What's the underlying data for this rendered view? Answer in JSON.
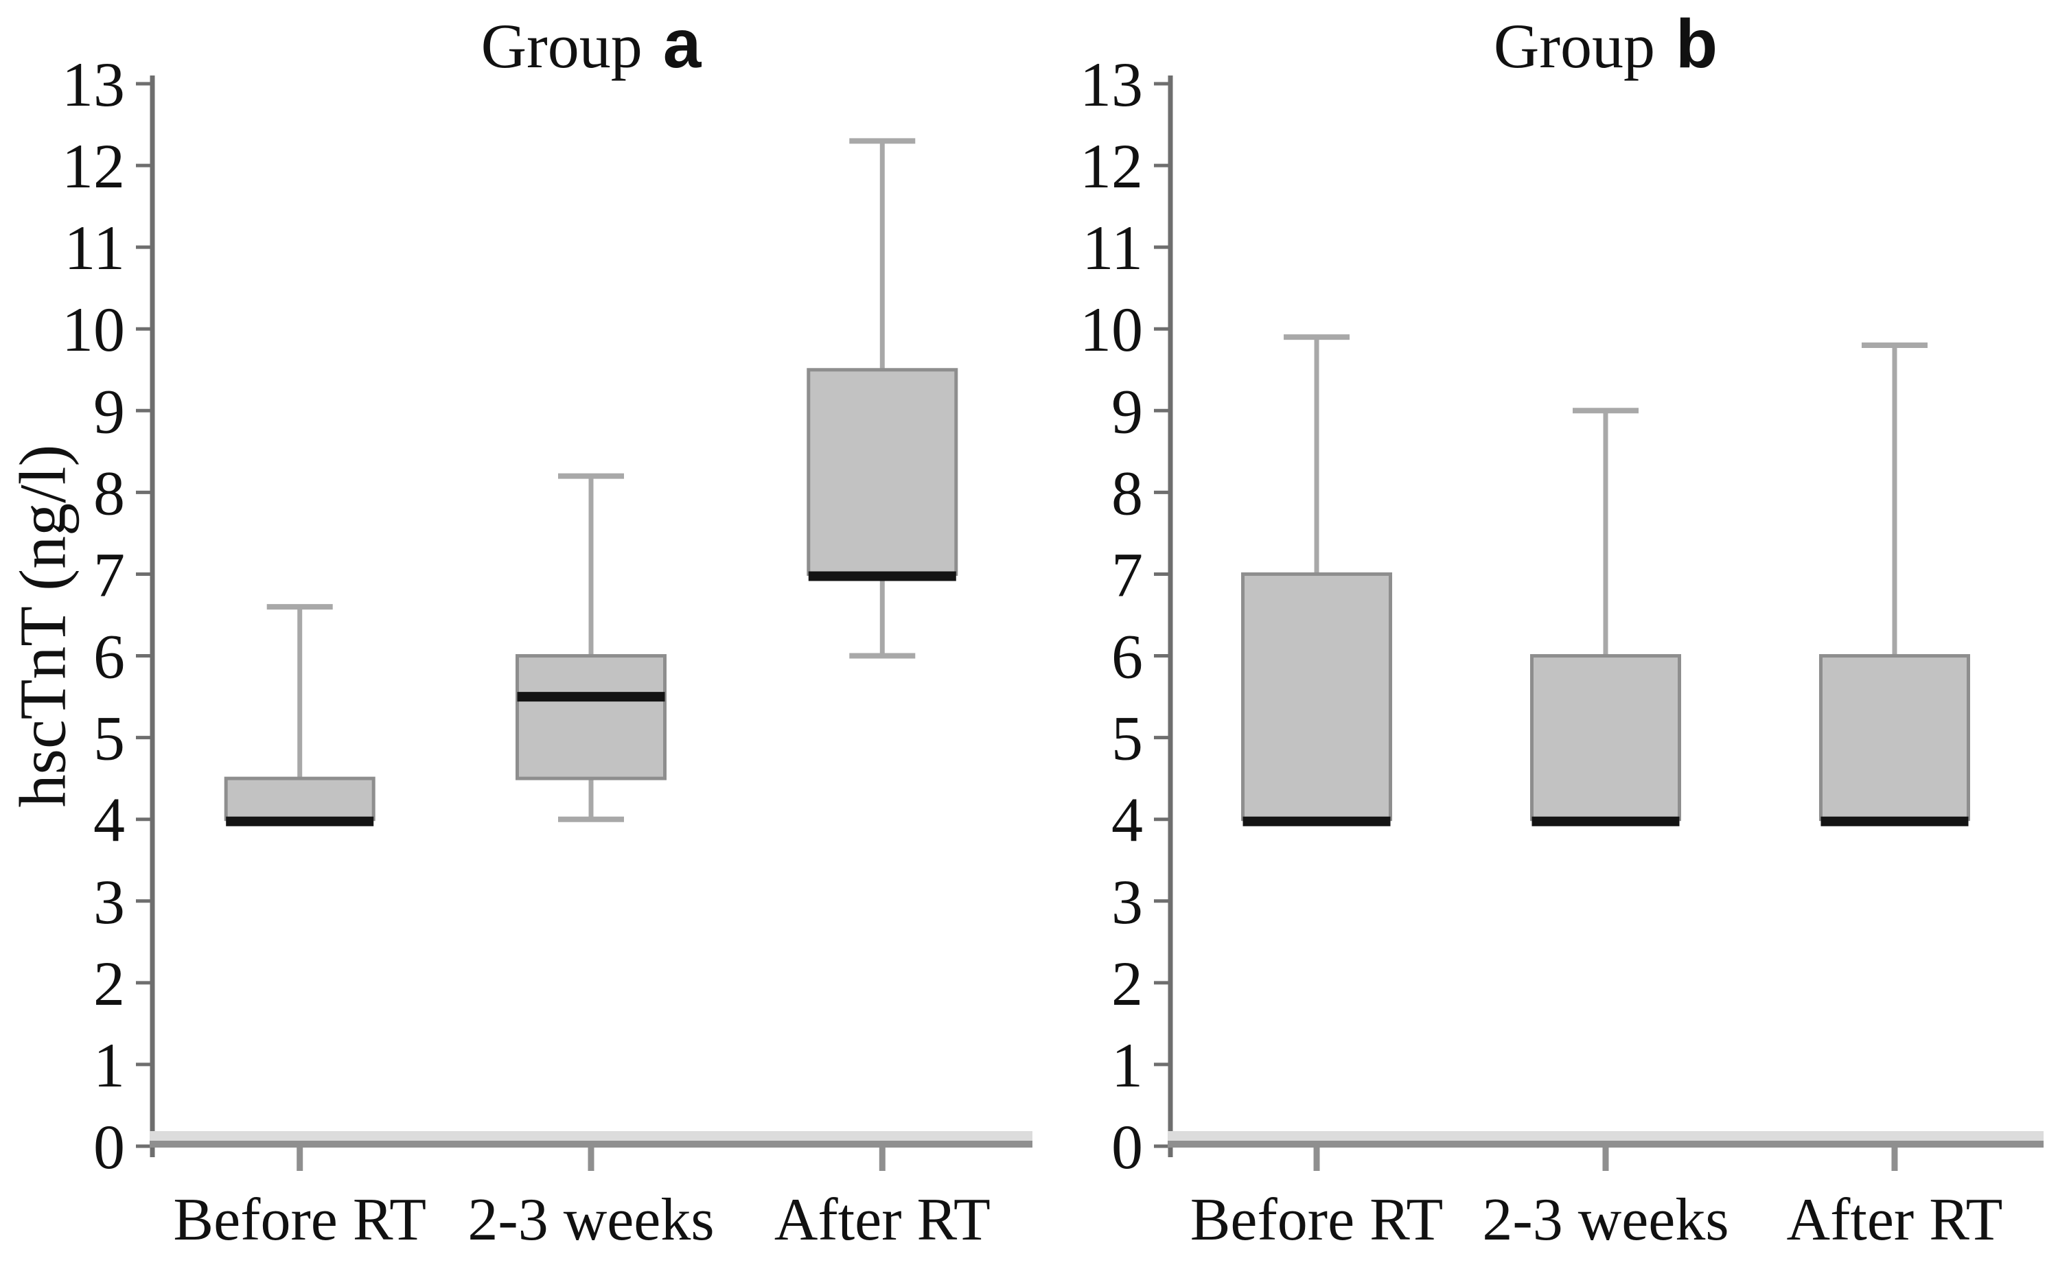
{
  "figure": {
    "background": "#ffffff"
  },
  "chart_data": {
    "type": "boxplot",
    "title": "",
    "ylabel": "hscTnT (ng/l)",
    "xlabel": "",
    "ylim": [
      0,
      13
    ],
    "yticks": [
      0,
      1,
      2,
      3,
      4,
      5,
      6,
      7,
      8,
      9,
      10,
      11,
      12,
      13
    ],
    "grid": false,
    "legend": "none",
    "categories": [
      "Before RT",
      "2-3 weeks",
      "After RT"
    ],
    "panels": [
      {
        "id": "a",
        "title_prefix": "Group",
        "title_letter": "a",
        "boxes": [
          {
            "category": "Before RT",
            "q1": 4,
            "median": 4,
            "q3": 4.5,
            "whisker_low": 4,
            "whisker_high": 6.6
          },
          {
            "category": "2-3 weeks",
            "q1": 4.5,
            "median": 5.5,
            "q3": 6,
            "whisker_low": 4,
            "whisker_high": 8.2
          },
          {
            "category": "After RT",
            "q1": 7,
            "median": 7,
            "q3": 9.5,
            "whisker_low": 6,
            "whisker_high": 12.3
          }
        ]
      },
      {
        "id": "b",
        "title_prefix": "Group",
        "title_letter": "b",
        "boxes": [
          {
            "category": "Before RT",
            "q1": 4,
            "median": 4,
            "q3": 7,
            "whisker_low": 4,
            "whisker_high": 9.9
          },
          {
            "category": "2-3 weeks",
            "q1": 4,
            "median": 4,
            "q3": 6,
            "whisker_low": 4,
            "whisker_high": 9.0
          },
          {
            "category": "After RT",
            "q1": 4,
            "median": 4,
            "q3": 6,
            "whisker_low": 4,
            "whisker_high": 9.8
          }
        ]
      }
    ],
    "colors": {
      "box_fill": "#c2c2c2",
      "box_border": "#8e8e8e",
      "median": "#141414",
      "whisker": "#a8a8a8",
      "axis": "#6e6e6e",
      "x_axis_band": "#dcdcdc",
      "x_axis_line": "#8f8f8f",
      "text": "#111111"
    }
  }
}
